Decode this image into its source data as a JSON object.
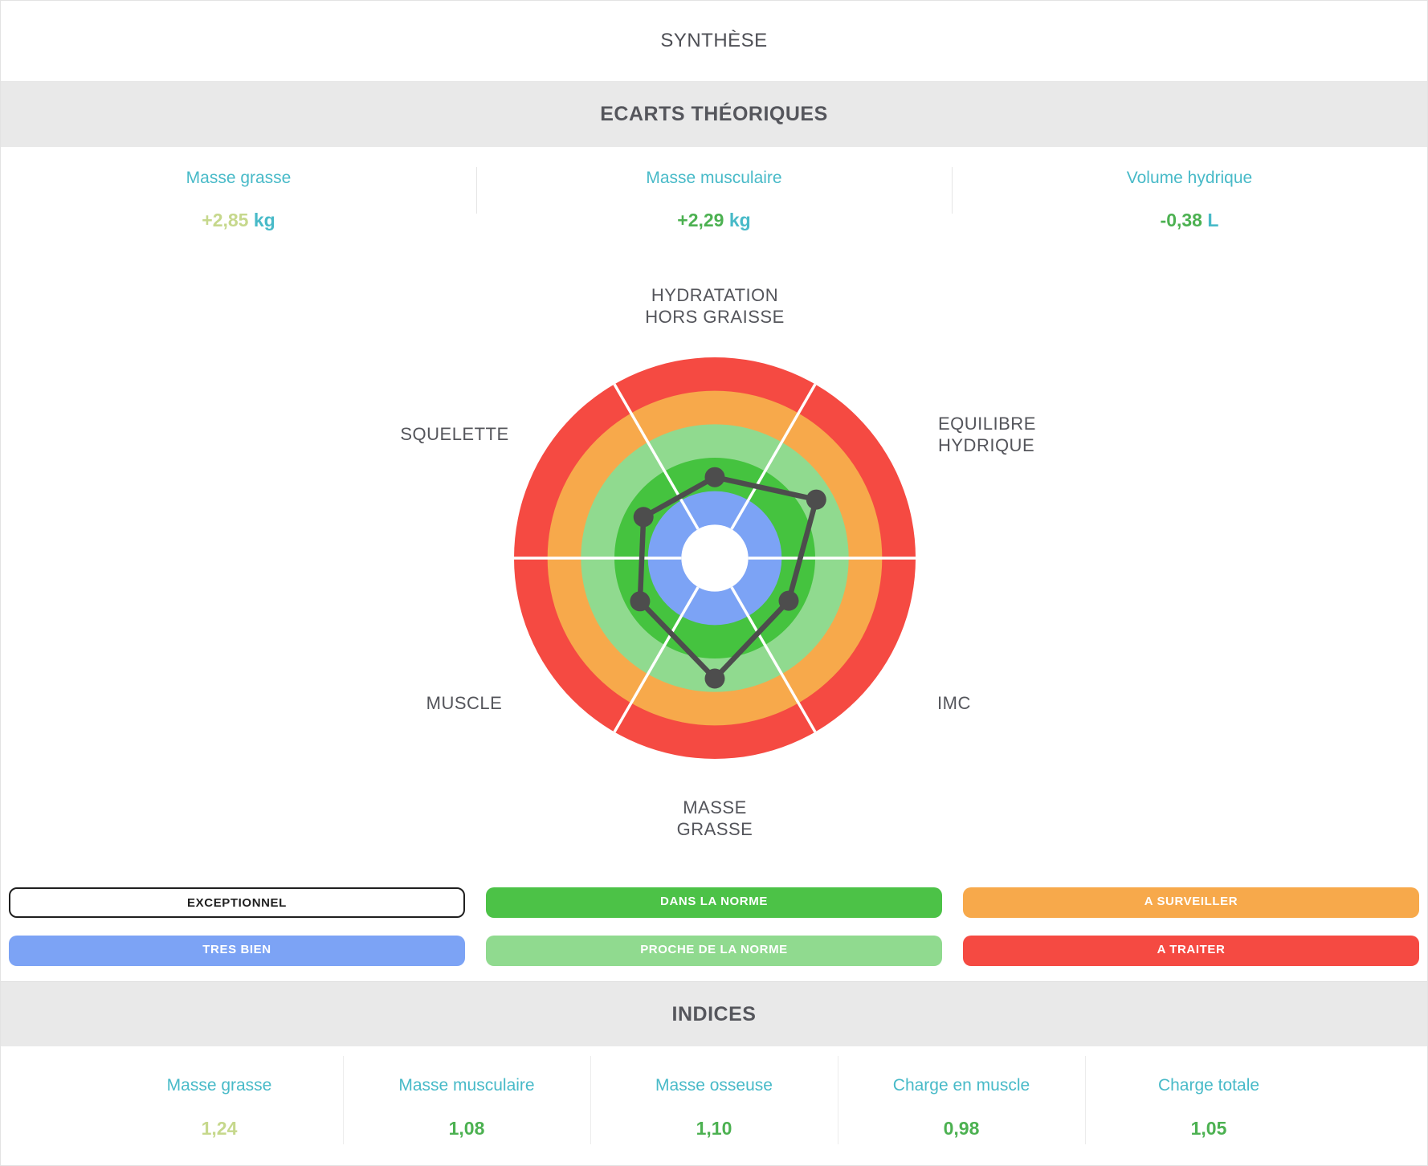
{
  "header": {
    "title": "SYNTHÈSE"
  },
  "ecarts": {
    "title": "ECARTS THÉORIQUES",
    "items": [
      {
        "label": "Masse grasse",
        "value": "+2,85",
        "unit": "kg",
        "value_color": "#c6d88c"
      },
      {
        "label": "Masse musculaire",
        "value": "+2,29",
        "unit": "kg",
        "value_color": "#4cb151"
      },
      {
        "label": "Volume hydrique",
        "value": "-0,38",
        "unit": "L",
        "value_color": "#4cb151"
      }
    ]
  },
  "chart_data": {
    "type": "radar",
    "title": "Body composition status radar (bullseye target, 6 equal rings)",
    "scale": {
      "min": 0,
      "max": 6
    },
    "rings_inner_to_outer": [
      {
        "label": "EXCEPTIONNEL",
        "color": "#ffffff"
      },
      {
        "label": "TRES BIEN",
        "color": "#7ca3f5"
      },
      {
        "label": "DANS LA NORME",
        "color": "#45c33f"
      },
      {
        "label": "PROCHE DE LA NORME",
        "color": "#90da8f"
      },
      {
        "label": "A SURVEILLER",
        "color": "#f7a94b"
      },
      {
        "label": "A TRAITER",
        "color": "#f54a42"
      }
    ],
    "axes": [
      {
        "label": "HYDRATATION HORS GRAISSE",
        "angle_deg": 90,
        "value": 2.42
      },
      {
        "label": "EQUILIBRE HYDRIQUE",
        "angle_deg": 30,
        "value": 3.5
      },
      {
        "label": "IMC",
        "angle_deg": -30,
        "value": 2.55
      },
      {
        "label": "MASSE GRASSE",
        "angle_deg": -90,
        "value": 3.6
      },
      {
        "label": "MUSCLE",
        "angle_deg": -150,
        "value": 2.58
      },
      {
        "label": "SQUELETTE",
        "angle_deg": 150,
        "value": 2.46
      }
    ],
    "line_color": "#4d4d4d",
    "spoke_color": "#ffffff",
    "legend_position": "below",
    "grid": "concentric-rings"
  },
  "radar_labels": {
    "top": [
      "HYDRATATION",
      "HORS GRAISSE"
    ],
    "top_right": [
      "EQUILIBRE",
      "HYDRIQUE"
    ],
    "bottom_right": [
      "IMC"
    ],
    "bottom": [
      "MASSE",
      "GRASSE"
    ],
    "bottom_left": [
      "MUSCLE"
    ],
    "top_left": [
      "SQUELETTE"
    ]
  },
  "legend": {
    "rows": [
      [
        {
          "label": "EXCEPTIONNEL",
          "bg": "#ffffff",
          "text": "#1f1f1f"
        },
        {
          "label": "DANS LA NORME",
          "bg": "#4cc247",
          "text": "#ffffff"
        },
        {
          "label": "A SURVEILLER",
          "bg": "#f7a94b",
          "text": "#ffffff"
        }
      ],
      [
        {
          "label": "TRES BIEN",
          "bg": "#7ca3f5",
          "text": "#ffffff"
        },
        {
          "label": "PROCHE DE LA NORME",
          "bg": "#90da8f",
          "text": "#ffffff"
        },
        {
          "label": "A TRAITER",
          "bg": "#f54a42",
          "text": "#ffffff"
        }
      ]
    ]
  },
  "indices": {
    "title": "INDICES",
    "items": [
      {
        "label": "Masse grasse",
        "value": "1,24",
        "value_color": "#c6d88c"
      },
      {
        "label": "Masse musculaire",
        "value": "1,08",
        "value_color": "#4cb151"
      },
      {
        "label": "Masse osseuse",
        "value": "1,10",
        "value_color": "#4cb151"
      },
      {
        "label": "Charge en muscle",
        "value": "0,98",
        "value_color": "#4cb151"
      },
      {
        "label": "Charge totale",
        "value": "1,05",
        "value_color": "#4cb151"
      }
    ]
  },
  "colors": {
    "teal_label": "#48bac8",
    "green_value": "#4cb151",
    "yellow_green_value": "#c6d88c",
    "dark_text": "#4e4f55",
    "band_bg": "#e9e9e9"
  }
}
